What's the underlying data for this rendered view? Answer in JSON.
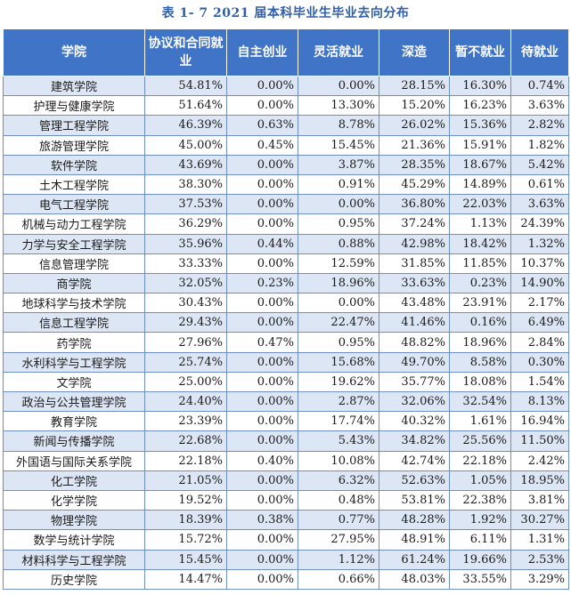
{
  "title": "表 1- 7    2021 届本科毕业生毕业去向分布",
  "headers": [
    "学院",
    "协议和合同就业",
    "自主创业",
    "灵活就业",
    "深造",
    "暂不就业",
    "待就业"
  ],
  "rows": [
    [
      "建筑学院",
      "54.81%",
      "0.00%",
      "0.00%",
      "28.15%",
      "16.30%",
      "0.74%"
    ],
    [
      "护理与健康学院",
      "51.64%",
      "0.00%",
      "13.30%",
      "15.20%",
      "16.23%",
      "3.63%"
    ],
    [
      "管理工程学院",
      "46.39%",
      "0.63%",
      "8.78%",
      "26.02%",
      "15.36%",
      "2.82%"
    ],
    [
      "旅游管理学院",
      "45.00%",
      "0.45%",
      "15.45%",
      "21.36%",
      "15.91%",
      "1.82%"
    ],
    [
      "软件学院",
      "43.69%",
      "0.00%",
      "3.87%",
      "28.35%",
      "18.67%",
      "5.42%"
    ],
    [
      "土木工程学院",
      "38.30%",
      "0.00%",
      "0.91%",
      "45.29%",
      "14.89%",
      "0.61%"
    ],
    [
      "电气工程学院",
      "37.53%",
      "0.00%",
      "0.00%",
      "36.80%",
      "22.03%",
      "3.63%"
    ],
    [
      "机械与动力工程学院",
      "36.29%",
      "0.00%",
      "0.95%",
      "37.24%",
      "1.13%",
      "24.39%"
    ],
    [
      "力学与安全工程学院",
      "35.96%",
      "0.44%",
      "0.88%",
      "42.98%",
      "18.42%",
      "1.32%"
    ],
    [
      "信息管理学院",
      "33.33%",
      "0.00%",
      "12.59%",
      "31.85%",
      "11.85%",
      "10.37%"
    ],
    [
      "商学院",
      "32.05%",
      "0.23%",
      "18.96%",
      "33.63%",
      "0.23%",
      "14.90%"
    ],
    [
      "地球科学与技术学院",
      "30.43%",
      "0.00%",
      "0.00%",
      "43.48%",
      "23.91%",
      "2.17%"
    ],
    [
      "信息工程学院",
      "29.43%",
      "0.00%",
      "22.47%",
      "41.46%",
      "0.16%",
      "6.49%"
    ],
    [
      "药学院",
      "27.96%",
      "0.47%",
      "0.95%",
      "48.82%",
      "18.96%",
      "2.84%"
    ],
    [
      "水利科学与工程学院",
      "25.74%",
      "0.00%",
      "15.68%",
      "49.70%",
      "8.58%",
      "0.30%"
    ],
    [
      "文学院",
      "25.00%",
      "0.00%",
      "19.62%",
      "35.77%",
      "18.08%",
      "1.54%"
    ],
    [
      "政治与公共管理学院",
      "24.40%",
      "0.00%",
      "2.87%",
      "32.06%",
      "32.54%",
      "8.13%"
    ],
    [
      "教育学院",
      "23.39%",
      "0.00%",
      "17.74%",
      "40.32%",
      "1.61%",
      "16.94%"
    ],
    [
      "新闻与传播学院",
      "22.68%",
      "0.00%",
      "5.43%",
      "34.82%",
      "25.56%",
      "11.50%"
    ],
    [
      "外国语与国际关系学院",
      "22.18%",
      "0.40%",
      "10.08%",
      "42.74%",
      "22.18%",
      "2.42%"
    ],
    [
      "化工学院",
      "21.05%",
      "0.00%",
      "6.32%",
      "52.63%",
      "1.05%",
      "18.95%"
    ],
    [
      "化学学院",
      "19.52%",
      "0.00%",
      "0.48%",
      "53.81%",
      "22.38%",
      "3.81%"
    ],
    [
      "物理学院",
      "18.39%",
      "0.38%",
      "0.77%",
      "48.28%",
      "1.92%",
      "30.27%"
    ],
    [
      "数学与统计学院",
      "15.72%",
      "0.00%",
      "27.95%",
      "48.91%",
      "6.11%",
      "1.31%"
    ],
    [
      "材料科学与工程学院",
      "15.45%",
      "0.00%",
      "1.12%",
      "61.24%",
      "19.66%",
      "2.53%"
    ],
    [
      "历史学院",
      "14.47%",
      "0.00%",
      "0.66%",
      "48.03%",
      "33.55%",
      "3.29%"
    ]
  ]
}
